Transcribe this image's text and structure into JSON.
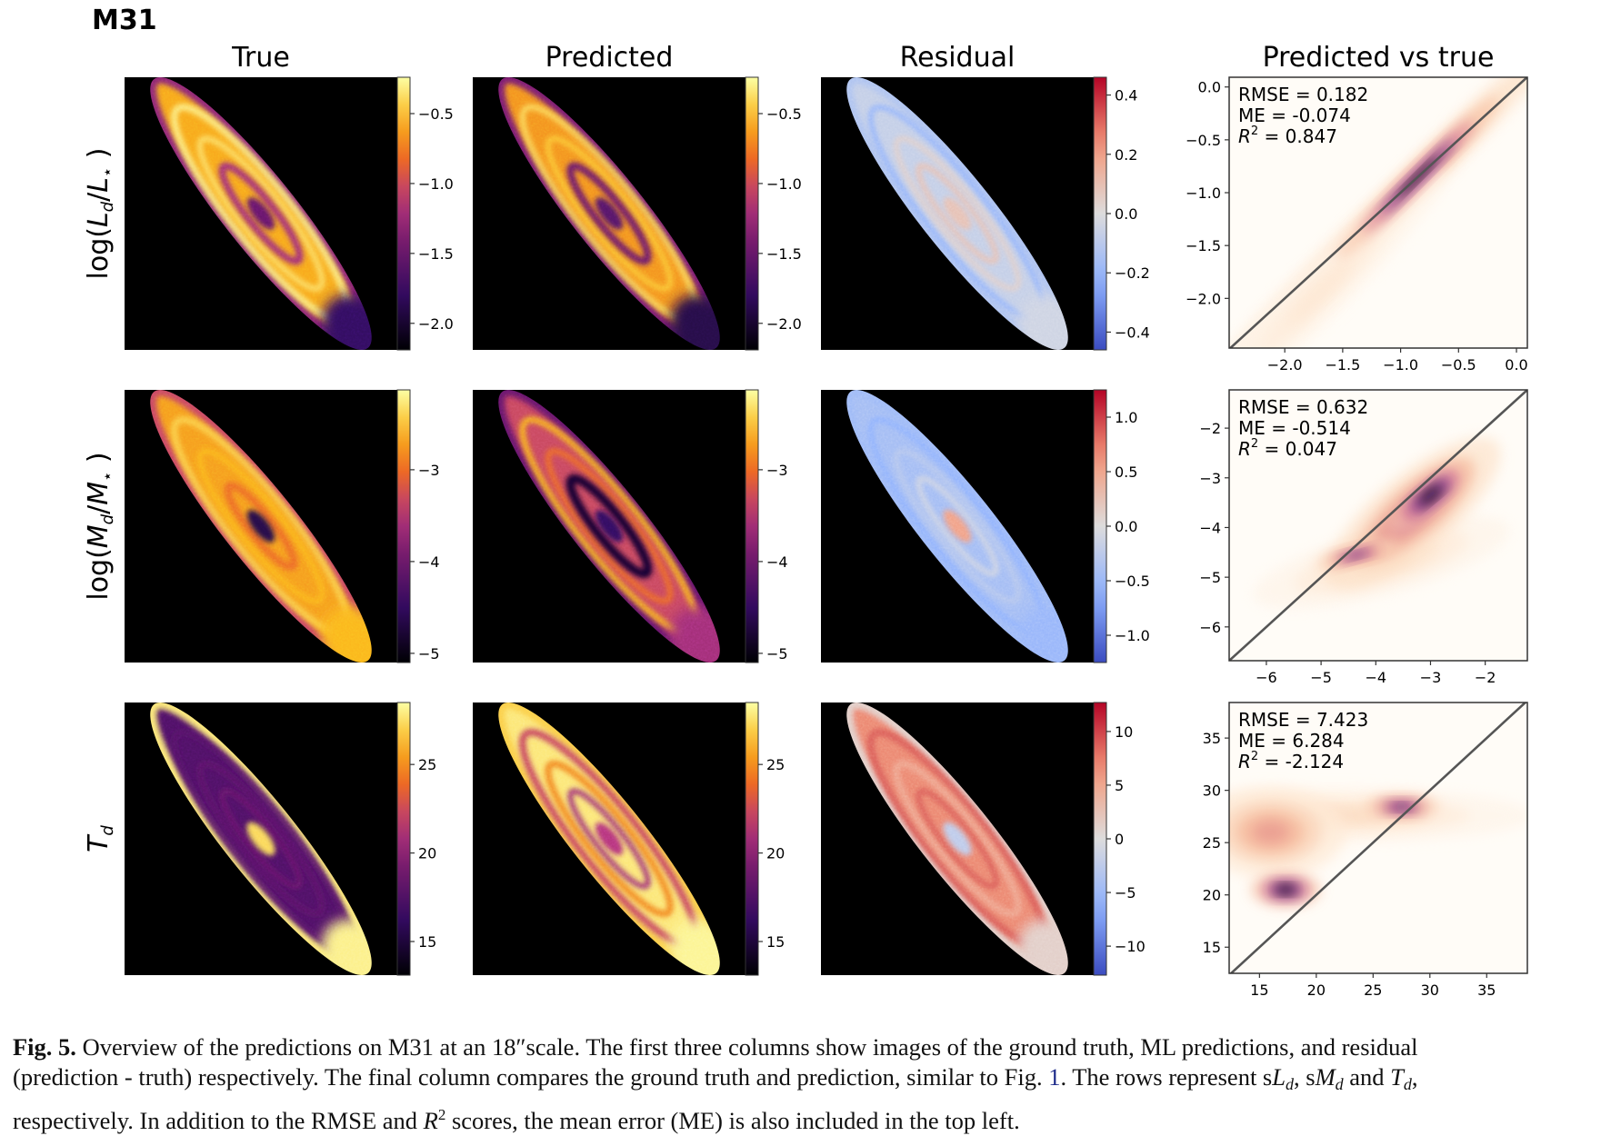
{
  "figure": {
    "title": "M31",
    "column_titles": [
      "True",
      "Predicted",
      "Residual",
      "Predicted vs true"
    ]
  },
  "chart_data": [
    {
      "row": 0,
      "type": "heatmap",
      "row_label": [
        {
          "text": "log(",
          "style": ""
        },
        {
          "text": "L",
          "style": "italic"
        },
        {
          "text": "d",
          "style": "sub"
        },
        {
          "text": "/",
          "style": ""
        },
        {
          "text": "L",
          "style": "italic"
        },
        {
          "text": "⋆",
          "style": "sub"
        },
        {
          "text": " )",
          "style": ""
        }
      ],
      "colorbars": [
        {
          "panel": "True",
          "cmap": "inferno",
          "range": [
            -2.19,
            -0.24
          ],
          "ticks": [
            -2.0,
            -1.5,
            -1.0,
            -0.5
          ],
          "tick_labels": [
            "−2.0",
            "−1.5",
            "−1.0",
            "−0.5"
          ]
        },
        {
          "panel": "Predicted",
          "cmap": "inferno",
          "range": [
            -2.19,
            -0.24
          ],
          "ticks": [
            -2.0,
            -1.5,
            -1.0,
            -0.5
          ],
          "tick_labels": [
            "−2.0",
            "−1.5",
            "−1.0",
            "−0.5"
          ]
        },
        {
          "panel": "Residual",
          "cmap": "coolwarm",
          "range": [
            -0.46,
            0.46
          ],
          "ticks": [
            -0.4,
            -0.2,
            0.0,
            0.2,
            0.4
          ],
          "tick_labels": [
            "−0.4",
            "−0.2",
            "0.0",
            "0.2",
            "0.4"
          ]
        }
      ],
      "scatter": {
        "type": "density",
        "xlim": [
          -2.48,
          0.094
        ],
        "ylim": [
          -2.47,
          0.092
        ],
        "xticks": [
          -2.0,
          -1.5,
          -1.0,
          -0.5,
          0.0
        ],
        "xtick_labels": [
          "−2.0",
          "−1.5",
          "−1.0",
          "−0.5",
          "0.0"
        ],
        "yticks": [
          -2.0,
          -1.5,
          -1.0,
          -0.5,
          0.0
        ],
        "ytick_labels": [
          "−2.0",
          "−1.5",
          "−1.0",
          "−0.5",
          "0.0"
        ],
        "one_to_one_line": true,
        "stats": {
          "rmse": "RMSE = 0.182",
          "me": "ME = -0.074",
          "r2_symbol": "R",
          "r2_exp": "2",
          "r2_value": " = 0.847"
        },
        "density_peaks": [
          {
            "x": -1.1,
            "y": -1.15,
            "sx": 1.3,
            "sy": 0.09,
            "angle": 45,
            "level": 0.3
          },
          {
            "x": -1.7,
            "y": -1.95,
            "sx": 0.7,
            "sy": 0.12,
            "angle": 45,
            "level": 0.12
          },
          {
            "x": -0.85,
            "y": -0.85,
            "sx": 0.45,
            "sy": 0.05,
            "angle": 45,
            "level": 1.0
          }
        ]
      }
    },
    {
      "row": 1,
      "type": "heatmap",
      "row_label": [
        {
          "text": "log(",
          "style": ""
        },
        {
          "text": "M",
          "style": "italic"
        },
        {
          "text": "d",
          "style": "sub"
        },
        {
          "text": "/",
          "style": ""
        },
        {
          "text": "M",
          "style": "italic"
        },
        {
          "text": "⋆",
          "style": "sub"
        },
        {
          "text": " )",
          "style": ""
        }
      ],
      "colorbars": [
        {
          "panel": "True",
          "cmap": "inferno",
          "range": [
            -5.1,
            -2.13
          ],
          "ticks": [
            -5,
            -4,
            -3
          ],
          "tick_labels": [
            "−5",
            "−4",
            "−3"
          ]
        },
        {
          "panel": "Predicted",
          "cmap": "inferno",
          "range": [
            -5.1,
            -2.13
          ],
          "ticks": [
            -5,
            -4,
            -3
          ],
          "tick_labels": [
            "−5",
            "−4",
            "−3"
          ]
        },
        {
          "panel": "Residual",
          "cmap": "coolwarm",
          "range": [
            -1.25,
            1.25
          ],
          "ticks": [
            -1.0,
            -0.5,
            0.0,
            0.5,
            1.0
          ],
          "tick_labels": [
            "−1.0",
            "−0.5",
            "0.0",
            "0.5",
            "1.0"
          ]
        }
      ],
      "scatter": {
        "type": "density",
        "xlim": [
          -6.68,
          -1.23
        ],
        "ylim": [
          -6.68,
          -1.23
        ],
        "xticks": [
          -6,
          -5,
          -4,
          -3,
          -2
        ],
        "xtick_labels": [
          "−6",
          "−5",
          "−4",
          "−3",
          "−2"
        ],
        "yticks": [
          -6,
          -5,
          -4,
          -3,
          -2
        ],
        "ytick_labels": [
          "−6",
          "−5",
          "−4",
          "−3",
          "−2"
        ],
        "one_to_one_line": true,
        "stats": {
          "rmse": "RMSE = 0.632",
          "me": "ME = -0.514",
          "r2_symbol": "R",
          "r2_exp": "2",
          "r2_value": " = 0.047"
        },
        "density_peaks": [
          {
            "x": -3.9,
            "y": -4.7,
            "sx": 1.1,
            "sy": 0.3,
            "angle": 15,
            "level": 0.18
          },
          {
            "x": -3.3,
            "y": -3.7,
            "sx": 0.9,
            "sy": 0.35,
            "angle": 40,
            "level": 0.55
          },
          {
            "x": -4.35,
            "y": -4.55,
            "sx": 0.35,
            "sy": 0.1,
            "angle": 15,
            "level": 0.8
          },
          {
            "x": -3.0,
            "y": -3.35,
            "sx": 0.45,
            "sy": 0.17,
            "angle": 40,
            "level": 1.0
          }
        ]
      }
    },
    {
      "row": 2,
      "type": "heatmap",
      "row_label": [
        {
          "text": "T",
          "style": "italic"
        },
        {
          "text": "d",
          "style": "sub"
        }
      ],
      "colorbars": [
        {
          "panel": "True",
          "cmap": "inferno",
          "range": [
            13.1,
            28.5
          ],
          "ticks": [
            15,
            20,
            25
          ],
          "tick_labels": [
            "15",
            "20",
            "25"
          ]
        },
        {
          "panel": "Predicted",
          "cmap": "inferno",
          "range": [
            13.1,
            28.5
          ],
          "ticks": [
            15,
            20,
            25
          ],
          "tick_labels": [
            "15",
            "20",
            "25"
          ]
        },
        {
          "panel": "Residual",
          "cmap": "coolwarm",
          "range": [
            -12.7,
            12.7
          ],
          "ticks": [
            -10,
            -5,
            0,
            5,
            10
          ],
          "tick_labels": [
            "−10",
            "−5",
            "0",
            "5",
            "10"
          ]
        }
      ],
      "scatter": {
        "type": "density",
        "xlim": [
          12.33,
          38.58
        ],
        "ylim": [
          12.5,
          38.4
        ],
        "xticks": [
          15,
          20,
          25,
          30,
          35
        ],
        "xtick_labels": [
          "15",
          "20",
          "25",
          "30",
          "35"
        ],
        "yticks": [
          15,
          20,
          25,
          30,
          35
        ],
        "ytick_labels": [
          "15",
          "20",
          "25",
          "30",
          "35"
        ],
        "one_to_one_line": true,
        "stats": {
          "rmse": "RMSE = 7.423",
          "me": "ME = 6.284",
          "r2_symbol": "R",
          "r2_exp": "2",
          "r2_value": " = -2.124"
        },
        "density_peaks": [
          {
            "x": 21.5,
            "y": 27.6,
            "sx": 8.0,
            "sy": 1.2,
            "angle": 0,
            "level": 0.18
          },
          {
            "x": 16.0,
            "y": 26.0,
            "sx": 3.0,
            "sy": 2.0,
            "angle": 0,
            "level": 0.4
          },
          {
            "x": 17.3,
            "y": 20.5,
            "sx": 1.4,
            "sy": 0.75,
            "angle": 0,
            "level": 1.0
          },
          {
            "x": 27.5,
            "y": 28.4,
            "sx": 1.5,
            "sy": 0.55,
            "angle": 0,
            "level": 0.85
          }
        ]
      }
    }
  ],
  "caption": {
    "lines": [
      [
        {
          "text": "Fig. 5.",
          "style": "bold"
        },
        {
          "text": " Overview of the predictions on M31 at an 18″scale. The first three columns show images of the ground truth, ML predictions, and residual",
          "style": ""
        }
      ],
      [
        {
          "text": "(prediction - truth) respectively. The final column compares the ground truth and prediction, similar to Fig. ",
          "style": ""
        },
        {
          "text": "1",
          "style": "link"
        },
        {
          "text": ". The rows represent s",
          "style": ""
        },
        {
          "text": "L",
          "style": "italic"
        },
        {
          "text": "d",
          "style": "sub"
        },
        {
          "text": ", s",
          "style": ""
        },
        {
          "text": "M",
          "style": "italic"
        },
        {
          "text": "d",
          "style": "sub"
        },
        {
          "text": " and ",
          "style": ""
        },
        {
          "text": "T",
          "style": "italic"
        },
        {
          "text": "d",
          "style": "sub"
        },
        {
          "text": ",",
          "style": ""
        }
      ],
      [
        {
          "text": "respectively. In addition to the RMSE and ",
          "style": ""
        },
        {
          "text": "R",
          "style": "italic"
        },
        {
          "text": "2",
          "style": "sup"
        },
        {
          "text": " scores, the mean error (ME) is also included in the top left.",
          "style": ""
        }
      ]
    ]
  },
  "colors": {
    "line": "#555555",
    "axes": "#333333",
    "panel_background": "#000000"
  }
}
